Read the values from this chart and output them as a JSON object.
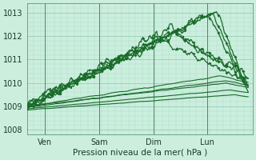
{
  "xlabel": "Pression niveau de la mer( hPa )",
  "x_ticks": [
    0,
    24,
    48,
    72
  ],
  "x_tick_labels": [
    "Ven",
    "Sam",
    "Dim",
    "Lun"
  ],
  "ylim": [
    1007.8,
    1013.4
  ],
  "y_ticks": [
    1008,
    1009,
    1010,
    1011,
    1012,
    1013
  ],
  "xlim": [
    -8,
    92
  ],
  "bg_color": "#cceedd",
  "plot_bg": "#cceedd",
  "grid_major_color": "#99ccbb",
  "grid_minor_color": "#aaddcc",
  "line_color": "#1a6b2a",
  "figsize": [
    3.2,
    2.0
  ],
  "dpi": 100
}
